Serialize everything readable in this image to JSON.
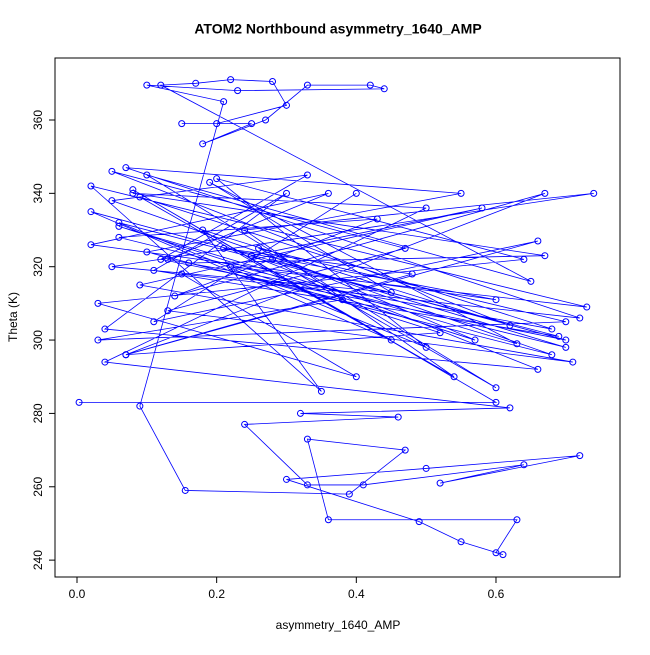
{
  "chart_data": {
    "type": "line",
    "title": "ATOM2 Northbound asymmetry_1640_AMP",
    "x_label": "asymmetry_1640_AMP",
    "y_label": "Theta (K)",
    "xlim": [
      -0.0315,
      0.7776
    ],
    "ylim": [
      235.4,
      376.9
    ],
    "xticks": [
      {
        "value": 0,
        "label": "0.0"
      },
      {
        "value": 0.2,
        "label": "0.2"
      },
      {
        "value": 0.4,
        "label": "0.4"
      },
      {
        "value": 0.6,
        "label": "0.6"
      }
    ],
    "yticks": [
      240,
      260,
      280,
      300,
      320,
      340,
      360
    ],
    "x": [
      0.003,
      0.6,
      0.08,
      0.45,
      0.02,
      0.7,
      0.12,
      0.33,
      0.05,
      0.68,
      0.1,
      0.55,
      0.07,
      0.72,
      0.15,
      0.4,
      0.03,
      0.64,
      0.2,
      0.5,
      0.06,
      0.69,
      0.11,
      0.3,
      0.04,
      0.66,
      0.25,
      0.58,
      0.09,
      0.71,
      0.13,
      0.47,
      0.05,
      0.62,
      0.18,
      0.35,
      0.02,
      0.73,
      0.22,
      0.52,
      0.07,
      0.67,
      0.14,
      0.43,
      0.06,
      0.7,
      0.28,
      0.6,
      0.1,
      0.65,
      0.12,
      0.17,
      0.22,
      0.28,
      0.3,
      0.2,
      0.15,
      0.25,
      0.18,
      0.27,
      0.33,
      0.42,
      0.44,
      0.23,
      0.1,
      0.21,
      0.09,
      0.155,
      0.39,
      0.47,
      0.33,
      0.36,
      0.63,
      0.6,
      0.61,
      0.55,
      0.49,
      0.3,
      0.5,
      0.72,
      0.52,
      0.64,
      0.41,
      0.33,
      0.24,
      0.46,
      0.32,
      0.62,
      0.04,
      0.5,
      0.08,
      0.67,
      0.16,
      0.38,
      0.03,
      0.7,
      0.26,
      0.57,
      0.06,
      0.63,
      0.19,
      0.45,
      0.05,
      0.74,
      0.24,
      0.54,
      0.09,
      0.68,
      0.13,
      0.36,
      0.02,
      0.6,
      0.21,
      0.48,
      0.07,
      0.66,
      0.11,
      0.4
    ],
    "series": [
      {
        "color": "#0000ff",
        "values": [
          283,
          283,
          341,
          300,
          335,
          300,
          322,
          345,
          338,
          296,
          324,
          340,
          347,
          306,
          318,
          290,
          310,
          322,
          344,
          298,
          332,
          301,
          319,
          340,
          303,
          292,
          323,
          336,
          315,
          294,
          308,
          325,
          346,
          304,
          330,
          286,
          342,
          309,
          320,
          302,
          296,
          340,
          312,
          333,
          328,
          298,
          322,
          287,
          345,
          316,
          369.5,
          370,
          371,
          370.5,
          364,
          359,
          359,
          359,
          353.5,
          360,
          369.5,
          369.5,
          368.5,
          368,
          369.5,
          365,
          282,
          259,
          258,
          270,
          273,
          251,
          251,
          242,
          241.5,
          245,
          250.5,
          262,
          265,
          268.5,
          261,
          266,
          260.5,
          260.5,
          277,
          279,
          280,
          281.5,
          294,
          336,
          340,
          323,
          321,
          311,
          300,
          305,
          325,
          300,
          331,
          299,
          343,
          313,
          320,
          340,
          330,
          290,
          339,
          303,
          322,
          340,
          326,
          311,
          325,
          318,
          296,
          327,
          305,
          340
        ]
      }
    ]
  }
}
